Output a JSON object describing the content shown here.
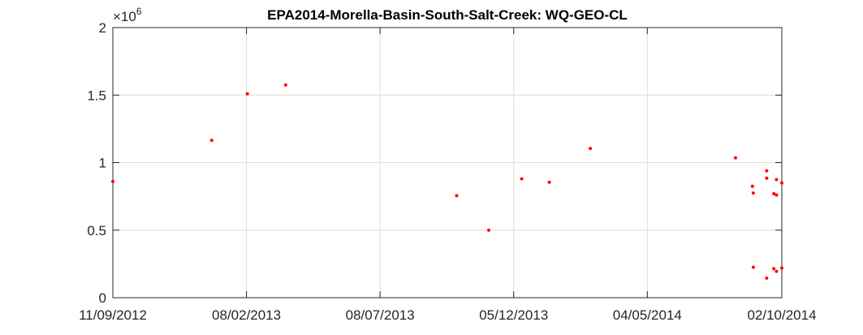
{
  "chart_data": {
    "type": "scatter",
    "title": "EPA2014-Morella-Basin-South-Salt-Creek: WQ-GEO-CL",
    "xlabel": "",
    "ylabel": "",
    "x_axis_type": "date",
    "xlim": [
      "2012-09-11",
      "2014-10-02"
    ],
    "ylim": [
      0,
      2000000
    ],
    "y_exponent_label": "×10^6",
    "y_exponent_base": "×10",
    "y_exponent_power": "6",
    "xticks": [
      "2012-09-11",
      "2013-02-08",
      "2013-07-08",
      "2013-12-05",
      "2014-05-04",
      "2014-10-02"
    ],
    "xtick_labels": [
      "11/09/2012",
      "08/02/2013",
      "08/07/2013",
      "05/12/2013",
      "04/05/2014",
      "02/10/2014"
    ],
    "yticks": [
      0,
      500000,
      1000000,
      1500000,
      2000000
    ],
    "ytick_labels": [
      "0",
      "0.5",
      "1",
      "1.5",
      "2"
    ],
    "grid": true,
    "marker_color": "#ff0000",
    "series": [
      {
        "points": [
          {
            "x": "2012-09-11",
            "y": 860000
          },
          {
            "x": "2012-12-31",
            "y": 1165000
          },
          {
            "x": "2013-02-09",
            "y": 1510000
          },
          {
            "x": "2013-03-24",
            "y": 1575000
          },
          {
            "x": "2013-10-02",
            "y": 755000
          },
          {
            "x": "2013-11-07",
            "y": 500000
          },
          {
            "x": "2013-12-14",
            "y": 880000
          },
          {
            "x": "2014-01-14",
            "y": 855000
          },
          {
            "x": "2014-03-01",
            "y": 1105000
          },
          {
            "x": "2014-08-11",
            "y": 1035000
          },
          {
            "x": "2014-08-30",
            "y": 825000
          },
          {
            "x": "2014-08-31",
            "y": 775000
          },
          {
            "x": "2014-08-31",
            "y": 225000
          },
          {
            "x": "2014-09-15",
            "y": 940000
          },
          {
            "x": "2014-09-15",
            "y": 885000
          },
          {
            "x": "2014-09-15",
            "y": 145000
          },
          {
            "x": "2014-09-23",
            "y": 770000
          },
          {
            "x": "2014-09-23",
            "y": 215000
          },
          {
            "x": "2014-09-26",
            "y": 875000
          },
          {
            "x": "2014-09-26",
            "y": 760000
          },
          {
            "x": "2014-09-26",
            "y": 195000
          },
          {
            "x": "2014-10-02",
            "y": 850000
          },
          {
            "x": "2014-10-02",
            "y": 220000
          }
        ]
      }
    ]
  }
}
